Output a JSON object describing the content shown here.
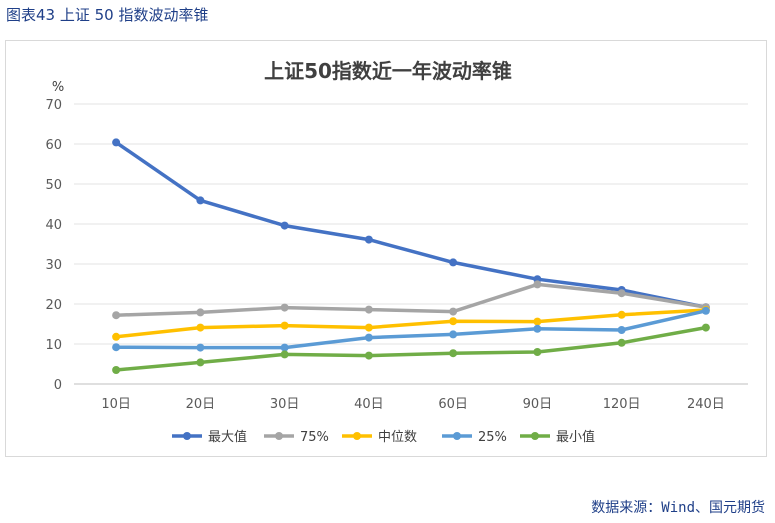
{
  "figure_caption": "图表43  上证 50 指数波动率锥",
  "source_note": "数据来源：Wind、国元期货",
  "chart_data": {
    "type": "line",
    "title": "上证50指数近一年波动率锥",
    "ylabel": "%",
    "xlabel": "",
    "categories": [
      "10日",
      "20日",
      "30日",
      "40日",
      "60日",
      "90日",
      "120日",
      "240日"
    ],
    "ylim": [
      0,
      70
    ],
    "yticks": [
      0,
      10,
      20,
      30,
      40,
      50,
      60,
      70
    ],
    "grid": true,
    "legend_position": "bottom",
    "series": [
      {
        "name": "最大值",
        "color": "#4472c4",
        "values": [
          60.4,
          45.9,
          39.6,
          36.1,
          30.4,
          26.2,
          23.5,
          19.2
        ]
      },
      {
        "name": "75%",
        "color": "#a5a5a5",
        "values": [
          17.2,
          17.9,
          19.1,
          18.6,
          18.1,
          24.9,
          22.7,
          19.2
        ]
      },
      {
        "name": "中位数",
        "color": "#ffc000",
        "values": [
          11.8,
          14.1,
          14.6,
          14.1,
          15.7,
          15.6,
          17.3,
          18.5
        ]
      },
      {
        "name": "25%",
        "color": "#5b9bd5",
        "values": [
          9.2,
          9.1,
          9.1,
          11.6,
          12.4,
          13.8,
          13.5,
          18.3
        ]
      },
      {
        "name": "最小值",
        "color": "#70ad47",
        "values": [
          3.5,
          5.4,
          7.4,
          7.1,
          7.7,
          8.0,
          10.3,
          14.1
        ]
      }
    ]
  }
}
